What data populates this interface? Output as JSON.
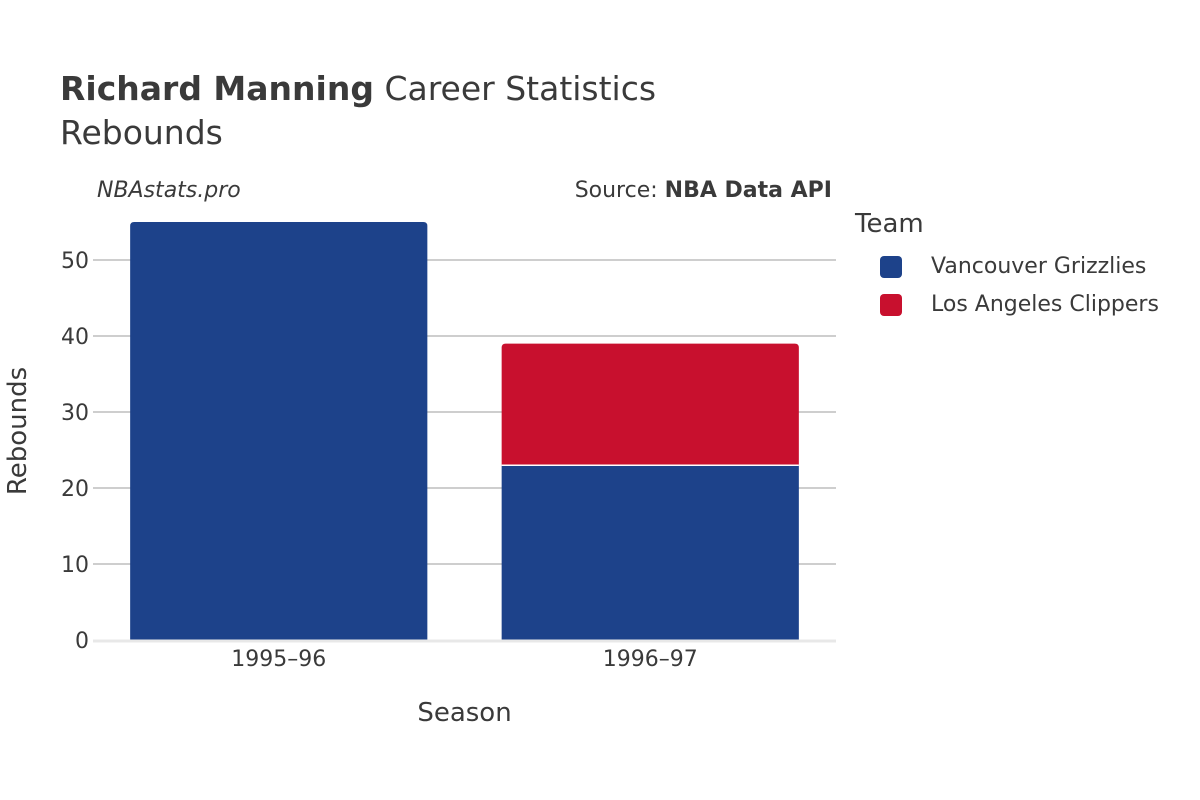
{
  "header": {
    "title_bold": "Richard Manning",
    "title_rest": " Career Statistics",
    "subtitle": "Rebounds",
    "watermark": "NBAstats.pro",
    "source_prefix": "Source: ",
    "source_bold": "NBA Data API"
  },
  "legend": {
    "title": "Team",
    "items": [
      {
        "label": "Vancouver Grizzlies",
        "color": "#1d428a"
      },
      {
        "label": "Los Angeles Clippers",
        "color": "#c8102e"
      }
    ]
  },
  "chart_data": {
    "type": "bar",
    "stacked": true,
    "categories": [
      "1995–96",
      "1996–97"
    ],
    "series": [
      {
        "name": "Vancouver Grizzlies",
        "values": [
          55,
          23
        ],
        "color": "#1d428a"
      },
      {
        "name": "Los Angeles Clippers",
        "values": [
          0,
          16
        ],
        "color": "#c8102e"
      }
    ],
    "xlabel": "Season",
    "ylabel": "Rebounds",
    "ylim": [
      0,
      55
    ],
    "yticks": [
      0,
      10,
      20,
      30,
      40,
      50
    ],
    "grid": true,
    "legend_position": "right"
  }
}
